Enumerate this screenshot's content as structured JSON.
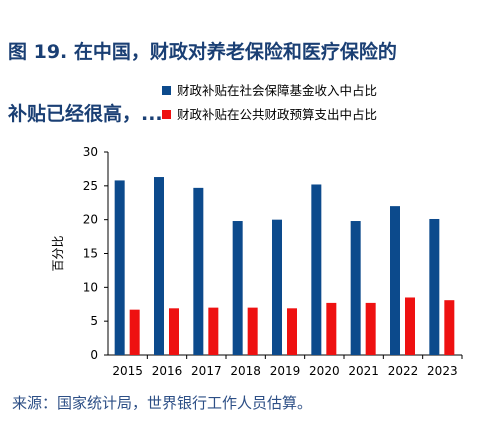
{
  "title": "图 19. 在中国，财政对养老保险和医疗保险的补贴已经很高，...",
  "title_lines": [
    "图 19. 在中国，财政对养老保险和医疗保险的",
    "补贴已经很高，..."
  ],
  "source": "来源：国家统计局，世界银行工作人员估算。",
  "colors": {
    "title": "#1a3f74",
    "series_social_insurance": "#0c4a8c",
    "series_public_budget": "#ee1111",
    "axis": "#000000",
    "source": "#2d4f86"
  },
  "chart_data": {
    "type": "bar",
    "categories": [
      "2015",
      "2016",
      "2017",
      "2018",
      "2019",
      "2020",
      "2021",
      "2022",
      "2023"
    ],
    "series": [
      {
        "name": "财政补贴在社会保障基金收入中占比",
        "color": "#0c4a8c",
        "values": [
          25.8,
          26.3,
          24.7,
          19.8,
          20.0,
          25.2,
          19.8,
          22.0,
          20.1
        ]
      },
      {
        "name": "财政补贴在公共财政预算支出中占比",
        "color": "#ee1111",
        "values": [
          6.7,
          6.9,
          7.0,
          7.0,
          6.9,
          7.7,
          7.7,
          8.5,
          8.1
        ]
      }
    ],
    "ylabel": "百分比",
    "xlabel": "",
    "ylim": [
      0,
      30
    ],
    "yticks": [
      0,
      5,
      10,
      15,
      20,
      25,
      30
    ],
    "grid": false,
    "legend_position": "top-left"
  }
}
